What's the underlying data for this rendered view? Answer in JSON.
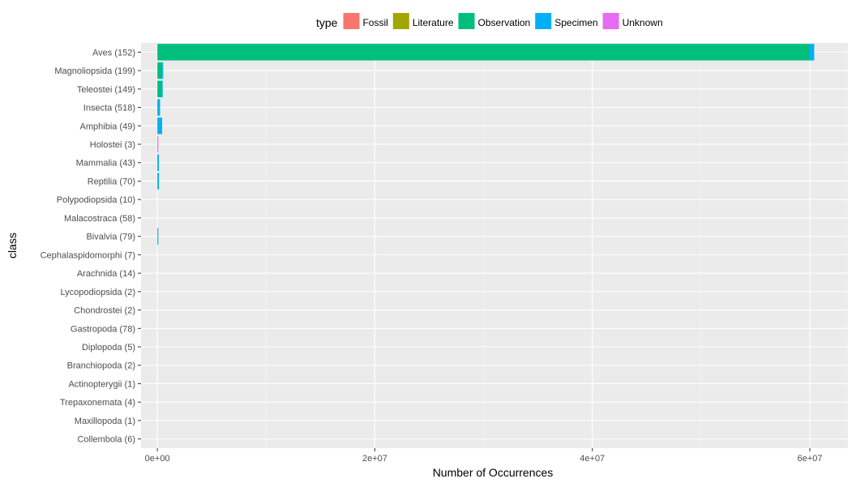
{
  "chart_data": {
    "type": "bar",
    "orientation": "horizontal",
    "stacked": true,
    "xlabel": "Number of Occurrences",
    "ylabel": "class",
    "xlim": [
      -1500000,
      63500000
    ],
    "xticks": [
      0,
      20000000,
      40000000,
      60000000
    ],
    "xtick_labels": [
      "0e+00",
      "2e+07",
      "4e+07",
      "6e+07"
    ],
    "grid": true,
    "legend": {
      "title": "type",
      "position": "top"
    },
    "categories": [
      "Aves (152)",
      "Magnoliopsida (199)",
      "Teleostei (149)",
      "Insecta (518)",
      "Amphibia (49)",
      "Holostei (3)",
      "Mammalia (43)",
      "Reptilia (70)",
      "Polypodiopsida (10)",
      "Malacostraca (58)",
      "Bivalvia (79)",
      "Cephalaspidomorphi (7)",
      "Arachnida (14)",
      "Lycopodiopsida (2)",
      "Chondrostei (2)",
      "Gastropoda (78)",
      "Diplopoda (5)",
      "Branchiopoda (2)",
      "Actinopterygii (1)",
      "Trepaxonemata (4)",
      "Maxillopoda (1)",
      "Collembola (6)"
    ],
    "series": [
      {
        "name": "Fossil",
        "color": "#F8766D",
        "values": [
          0,
          0,
          0,
          0,
          0,
          0,
          0,
          0,
          0,
          0,
          0,
          0,
          0,
          0,
          0,
          0,
          0,
          0,
          0,
          0,
          0,
          0
        ]
      },
      {
        "name": "Literature",
        "color": "#A3A500",
        "values": [
          0,
          0,
          0,
          0,
          0,
          0,
          0,
          0,
          0,
          0,
          0,
          0,
          0,
          0,
          0,
          0,
          0,
          0,
          0,
          0,
          0,
          0
        ]
      },
      {
        "name": "Observation",
        "color": "#00BF7D",
        "values": [
          60000000,
          450000,
          400000,
          50000,
          60000,
          0,
          20000,
          0,
          0,
          0,
          0,
          0,
          0,
          0,
          0,
          0,
          0,
          0,
          0,
          0,
          0,
          0
        ]
      },
      {
        "name": "Specimen",
        "color": "#00B0F6",
        "values": [
          400000,
          80000,
          80000,
          200000,
          380000,
          0,
          120000,
          150000,
          0,
          0,
          60000,
          0,
          0,
          0,
          0,
          0,
          0,
          0,
          0,
          0,
          0,
          0
        ]
      },
      {
        "name": "Unknown",
        "color": "#E76BF3",
        "values": [
          0,
          0,
          0,
          0,
          0,
          50000,
          0,
          0,
          0,
          0,
          0,
          0,
          0,
          0,
          0,
          0,
          0,
          0,
          0,
          0,
          0,
          0
        ]
      }
    ]
  }
}
